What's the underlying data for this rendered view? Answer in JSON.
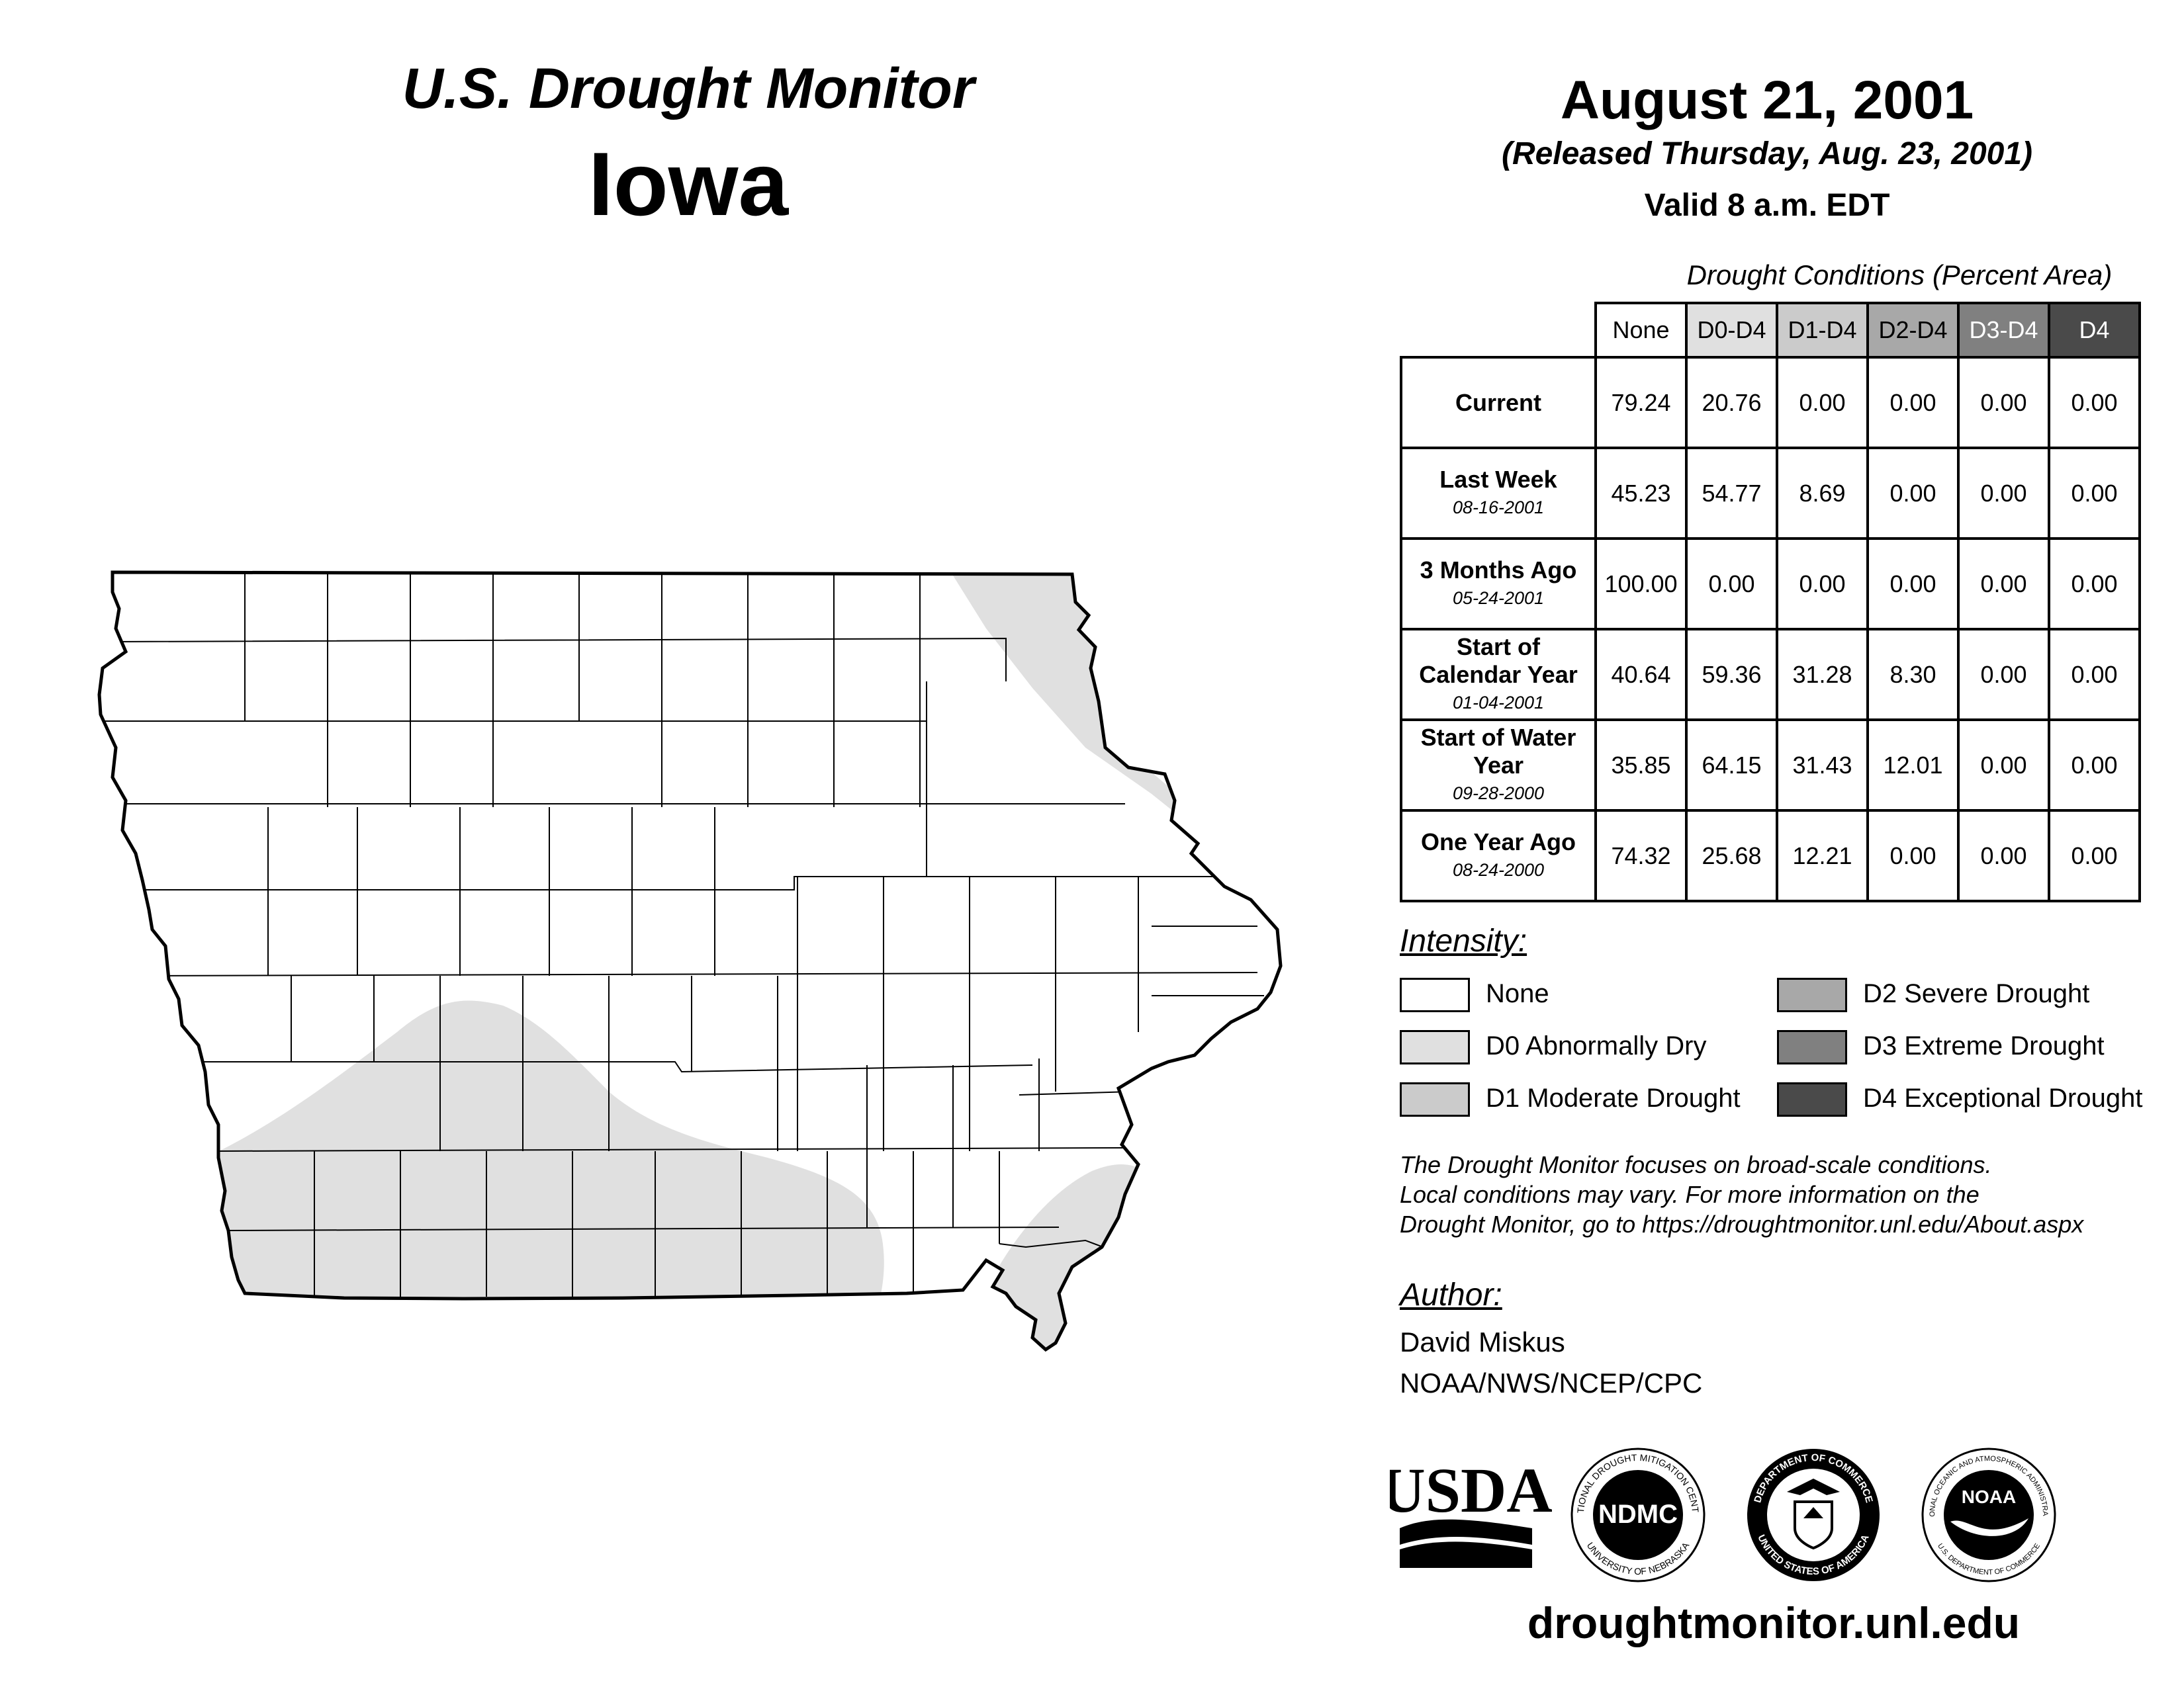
{
  "header": {
    "title": "U.S. Drought Monitor",
    "state": "Iowa",
    "date": "August 21, 2001",
    "released": "(Released Thursday, Aug. 23, 2001)",
    "valid": "Valid 8 a.m. EDT"
  },
  "table": {
    "caption": "Drought Conditions (Percent Area)",
    "columns": [
      {
        "label": "None",
        "color": "#ffffff",
        "text_color": "#000000"
      },
      {
        "label": "D0-D4",
        "color": "#e0e0e0",
        "text_color": "#000000"
      },
      {
        "label": "D1-D4",
        "color": "#cbcbcb",
        "text_color": "#000000"
      },
      {
        "label": "D2-D4",
        "color": "#a8a8a8",
        "text_color": "#000000"
      },
      {
        "label": "D3-D4",
        "color": "#808080",
        "text_color": "#ffffff"
      },
      {
        "label": "D4",
        "color": "#4a4a4a",
        "text_color": "#ffffff"
      }
    ],
    "rows": [
      {
        "label": "Current",
        "sub": "",
        "values": [
          "79.24",
          "20.76",
          "0.00",
          "0.00",
          "0.00",
          "0.00"
        ]
      },
      {
        "label": "Last Week",
        "sub": "08-16-2001",
        "values": [
          "45.23",
          "54.77",
          "8.69",
          "0.00",
          "0.00",
          "0.00"
        ]
      },
      {
        "label": "3 Months Ago",
        "sub": "05-24-2001",
        "values": [
          "100.00",
          "0.00",
          "0.00",
          "0.00",
          "0.00",
          "0.00"
        ]
      },
      {
        "label": "Start of Calendar Year",
        "sub": "01-04-2001",
        "values": [
          "40.64",
          "59.36",
          "31.28",
          "8.30",
          "0.00",
          "0.00"
        ]
      },
      {
        "label": "Start of Water Year",
        "sub": "09-28-2000",
        "values": [
          "35.85",
          "64.15",
          "31.43",
          "12.01",
          "0.00",
          "0.00"
        ]
      },
      {
        "label": "One Year Ago",
        "sub": "08-24-2000",
        "values": [
          "74.32",
          "25.68",
          "12.21",
          "0.00",
          "0.00",
          "0.00"
        ]
      }
    ]
  },
  "legend": {
    "title": "Intensity:",
    "items": [
      {
        "label": "None",
        "color": "#ffffff"
      },
      {
        "label": "D0 Abnormally Dry",
        "color": "#e0e0e0"
      },
      {
        "label": "D1 Moderate Drought",
        "color": "#cbcbcb"
      },
      {
        "label": "D2 Severe Drought",
        "color": "#a8a8a8"
      },
      {
        "label": "D3 Extreme Drought",
        "color": "#808080"
      },
      {
        "label": "D4 Exceptional Drought",
        "color": "#4a4a4a"
      }
    ]
  },
  "note": [
    "The Drought Monitor focuses on broad-scale conditions.",
    "Local conditions may vary. For more information on the",
    "Drought Monitor, go to https://droughtmonitor.unl.edu/About.aspx"
  ],
  "author": {
    "title": "Author:",
    "name": "David Miskus",
    "org": "NOAA/NWS/NCEP/CPC"
  },
  "logos": {
    "usda": "USDA",
    "ndmc": "NDMC",
    "ndmc_ring_top": "NATIONAL DROUGHT MITIGATION CENTER",
    "ndmc_ring_bottom": "UNIVERSITY OF NEBRASKA",
    "doc_ring_top": "DEPARTMENT OF COMMERCE",
    "doc_ring_bottom": "UNITED STATES OF AMERICA",
    "noaa": "NOAA",
    "noaa_ring_top": "NATIONAL OCEANIC AND ATMOSPHERIC ADMINISTRATION",
    "noaa_ring_bottom": "U.S. DEPARTMENT OF COMMERCE"
  },
  "footer": {
    "url": "droughtmonitor.unl.edu"
  }
}
